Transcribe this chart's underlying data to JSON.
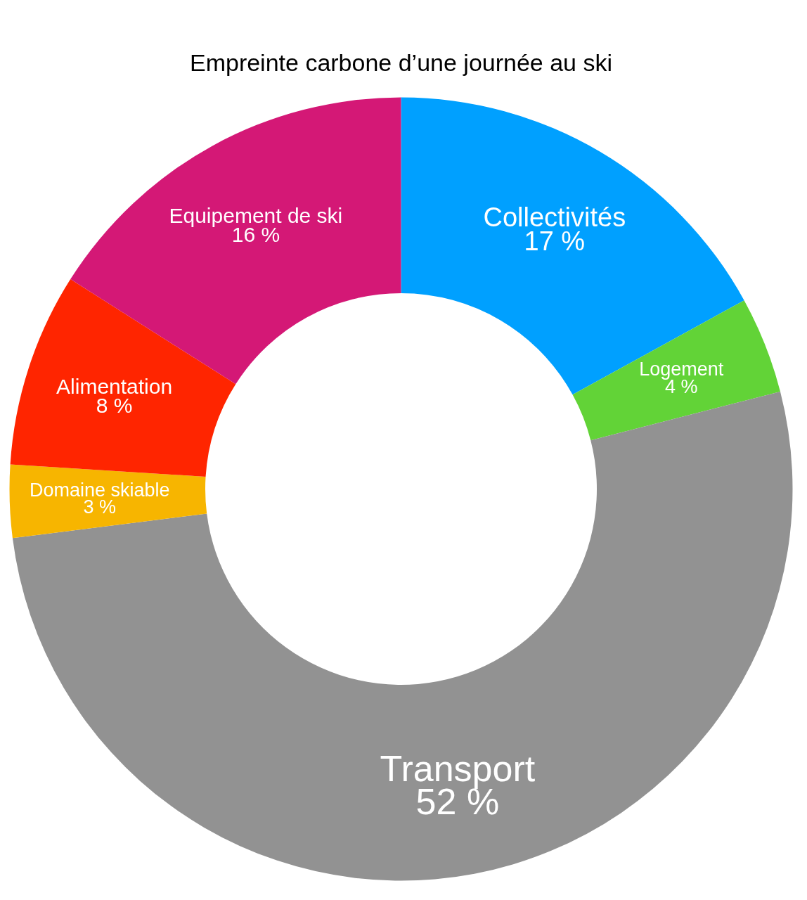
{
  "chart_data": {
    "type": "donut",
    "title": "Empreinte carbone d’une journée au ski",
    "categories": [
      "Collectivités",
      "Logement",
      "Transport",
      "Domaine skiable",
      "Alimentation",
      "Equipement de ski"
    ],
    "values": [
      17,
      4,
      52,
      3,
      8,
      16
    ],
    "colors": [
      "#00a0ff",
      "#62d337",
      "#929292",
      "#f7b500",
      "#ff2500",
      "#d41876"
    ],
    "value_labels": [
      "17 %",
      "4 %",
      "52 %",
      "3 %",
      "8 %",
      "16 %"
    ]
  }
}
